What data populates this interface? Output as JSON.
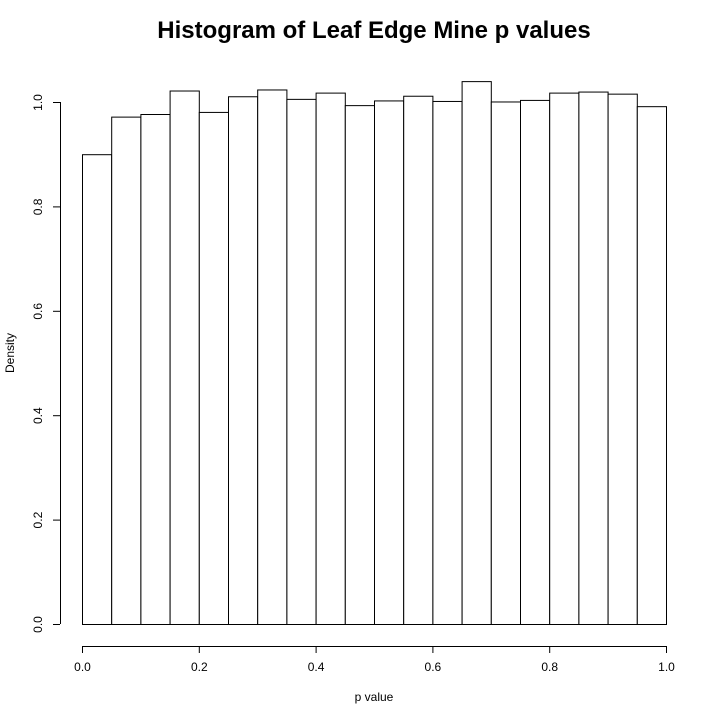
{
  "chart_data": {
    "type": "bar",
    "title": "Histogram of Leaf Edge Mine p values",
    "xlabel": "p value",
    "ylabel": "Density",
    "xlim": [
      0,
      1
    ],
    "ylim": [
      0,
      1.04
    ],
    "xticks": [
      "0.0",
      "0.2",
      "0.4",
      "0.6",
      "0.8",
      "1.0"
    ],
    "yticks": [
      "0.0",
      "0.2",
      "0.4",
      "0.6",
      "0.8",
      "1.0"
    ],
    "bin_edges": [
      0.0,
      0.05,
      0.1,
      0.15,
      0.2,
      0.25,
      0.3,
      0.35,
      0.4,
      0.45,
      0.5,
      0.55,
      0.6,
      0.65,
      0.7,
      0.75,
      0.8,
      0.85,
      0.9,
      0.95,
      1.0
    ],
    "values": [
      0.9,
      0.972,
      0.977,
      1.022,
      0.981,
      1.011,
      1.024,
      1.006,
      1.018,
      0.994,
      1.003,
      1.012,
      1.002,
      1.04,
      1.001,
      1.004,
      1.018,
      1.02,
      1.016,
      0.992
    ],
    "grid": false,
    "legend": "none"
  }
}
